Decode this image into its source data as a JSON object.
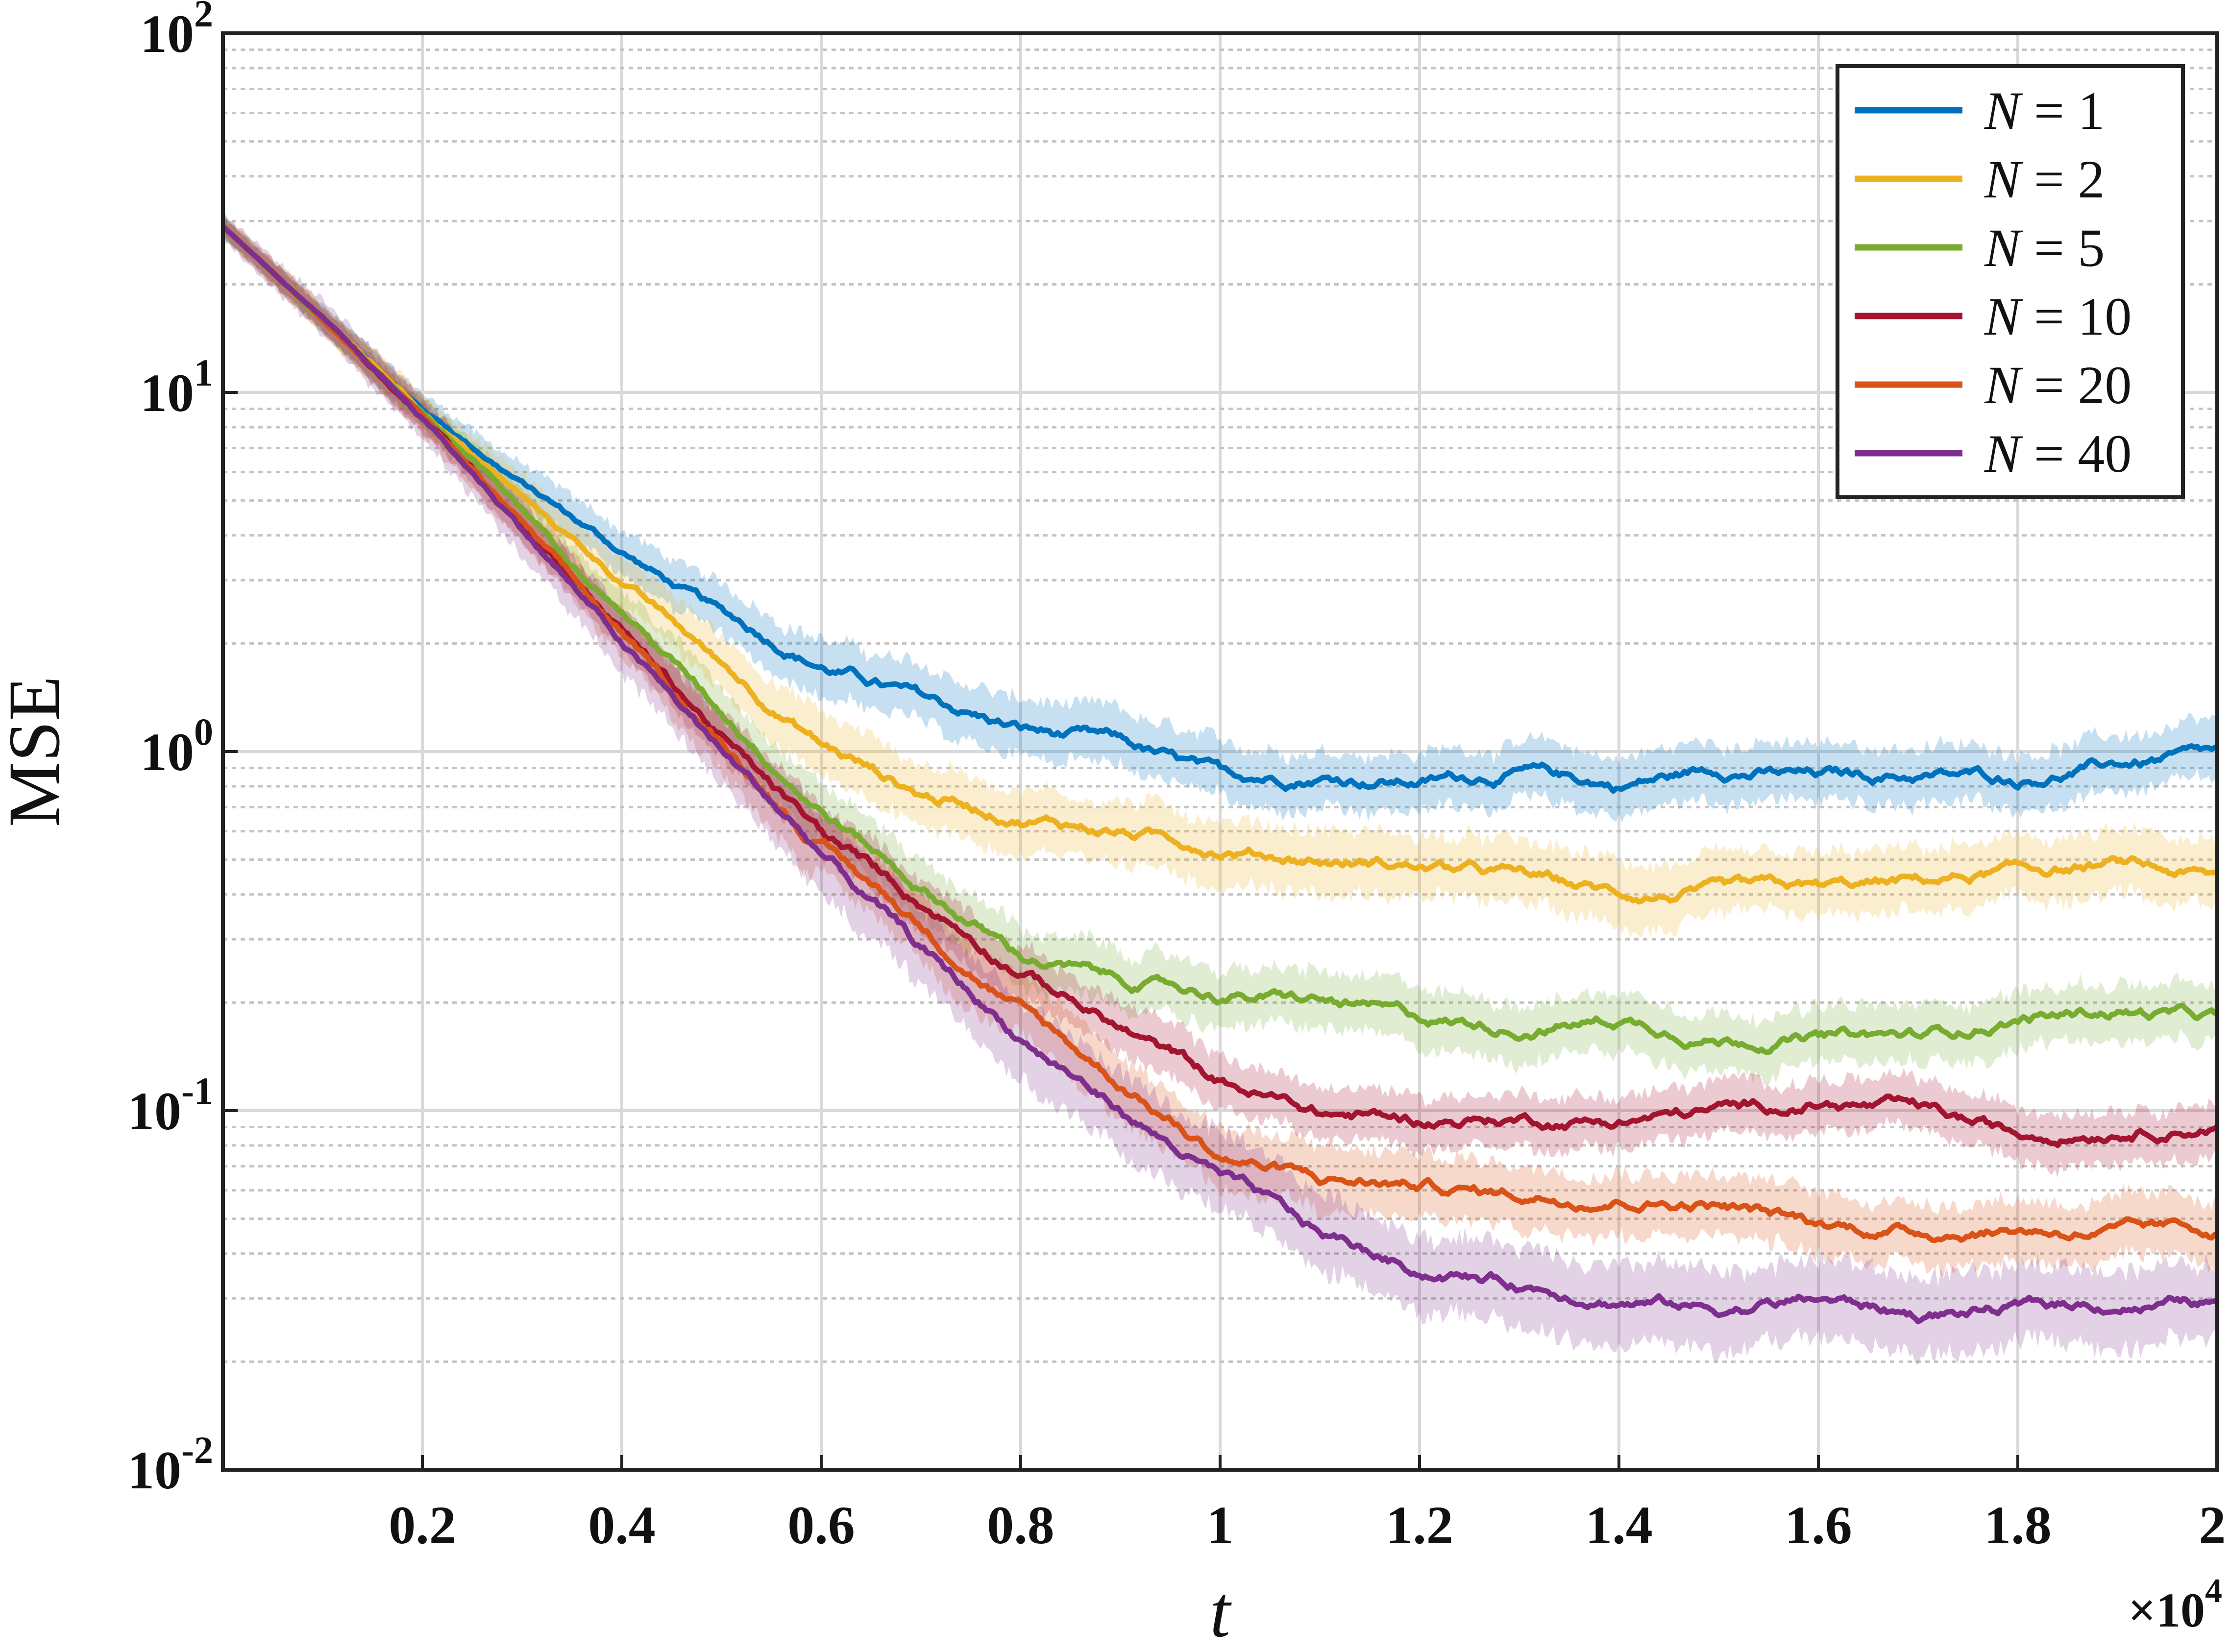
{
  "chart_data": {
    "type": "line",
    "xlabel": "t",
    "ylabel": "MSE",
    "x_multiplier_label": "×10",
    "x_multiplier_exp": "4",
    "xlim": [
      0,
      20000
    ],
    "ylim": [
      0.01,
      100
    ],
    "y_scale": "log",
    "grid": true,
    "legend_position": "top-right",
    "x_ticks": [
      {
        "value": 2000,
        "label": "0.2"
      },
      {
        "value": 4000,
        "label": "0.4"
      },
      {
        "value": 6000,
        "label": "0.6"
      },
      {
        "value": 8000,
        "label": "0.8"
      },
      {
        "value": 10000,
        "label": "1"
      },
      {
        "value": 12000,
        "label": "1.2"
      },
      {
        "value": 14000,
        "label": "1.4"
      },
      {
        "value": 16000,
        "label": "1.6"
      },
      {
        "value": 18000,
        "label": "1.8"
      },
      {
        "value": 20000,
        "label": "2"
      }
    ],
    "y_ticks": [
      {
        "value": 0.01,
        "base": "10",
        "exp": "-2"
      },
      {
        "value": 0.1,
        "base": "10",
        "exp": "-1"
      },
      {
        "value": 1,
        "base": "10",
        "exp": "0"
      },
      {
        "value": 10,
        "base": "10",
        "exp": "1"
      },
      {
        "value": 100,
        "base": "10",
        "exp": "2"
      }
    ],
    "x": [
      0,
      1000,
      2000,
      3000,
      4000,
      5000,
      6000,
      7000,
      8000,
      9000,
      10000,
      11000,
      12000,
      13000,
      14000,
      15000,
      16000,
      17000,
      18000,
      19000,
      20000
    ],
    "series": [
      {
        "name": "N = 1",
        "label_lhs": "N",
        "label_rhs": "= 1",
        "color": "#0072BD",
        "band_ratio": 1.2,
        "values": [
          29,
          16,
          9.0,
          5.6,
          3.6,
          2.4,
          1.75,
          1.4,
          1.15,
          1.05,
          0.84,
          0.86,
          0.83,
          0.88,
          0.8,
          0.9,
          0.85,
          0.86,
          0.84,
          0.92,
          0.97
        ]
      },
      {
        "name": "N = 2",
        "label_lhs": "N",
        "label_rhs": "= 2",
        "color": "#EDB120",
        "band_ratio": 1.22,
        "values": [
          29,
          16,
          8.9,
          5.1,
          3.0,
          1.75,
          1.05,
          0.76,
          0.66,
          0.6,
          0.54,
          0.5,
          0.48,
          0.45,
          0.4,
          0.4,
          0.41,
          0.43,
          0.46,
          0.48,
          0.44
        ]
      },
      {
        "name": "N = 5",
        "label_lhs": "N",
        "label_rhs": "= 5",
        "color": "#77AC30",
        "band_ratio": 1.2,
        "values": [
          29,
          16,
          8.8,
          4.7,
          2.5,
          1.3,
          0.7,
          0.42,
          0.27,
          0.23,
          0.21,
          0.2,
          0.18,
          0.17,
          0.18,
          0.16,
          0.16,
          0.16,
          0.18,
          0.19,
          0.18
        ]
      },
      {
        "name": "N = 10",
        "label_lhs": "N",
        "label_rhs": "= 10",
        "color": "#A2142F",
        "band_ratio": 1.18,
        "values": [
          29,
          16,
          8.6,
          4.4,
          2.2,
          1.1,
          0.58,
          0.38,
          0.25,
          0.17,
          0.12,
          0.098,
          0.094,
          0.095,
          0.094,
          0.1,
          0.105,
          0.1,
          0.085,
          0.09,
          0.092
        ]
      },
      {
        "name": "N = 20",
        "label_lhs": "N",
        "label_rhs": "= 20",
        "color": "#D95319",
        "band_ratio": 1.22,
        "values": [
          29,
          16,
          8.6,
          4.3,
          2.1,
          1.05,
          0.55,
          0.33,
          0.19,
          0.12,
          0.075,
          0.064,
          0.062,
          0.058,
          0.058,
          0.055,
          0.048,
          0.046,
          0.047,
          0.046,
          0.046
        ]
      },
      {
        "name": "N = 40",
        "label_lhs": "N",
        "label_rhs": "= 40",
        "color": "#7E2F8E",
        "band_ratio": 1.28,
        "values": [
          29,
          16,
          8.5,
          4.2,
          2.0,
          1.0,
          0.52,
          0.28,
          0.16,
          0.1,
          0.065,
          0.045,
          0.036,
          0.033,
          0.03,
          0.028,
          0.03,
          0.027,
          0.028,
          0.029,
          0.029
        ]
      }
    ]
  }
}
